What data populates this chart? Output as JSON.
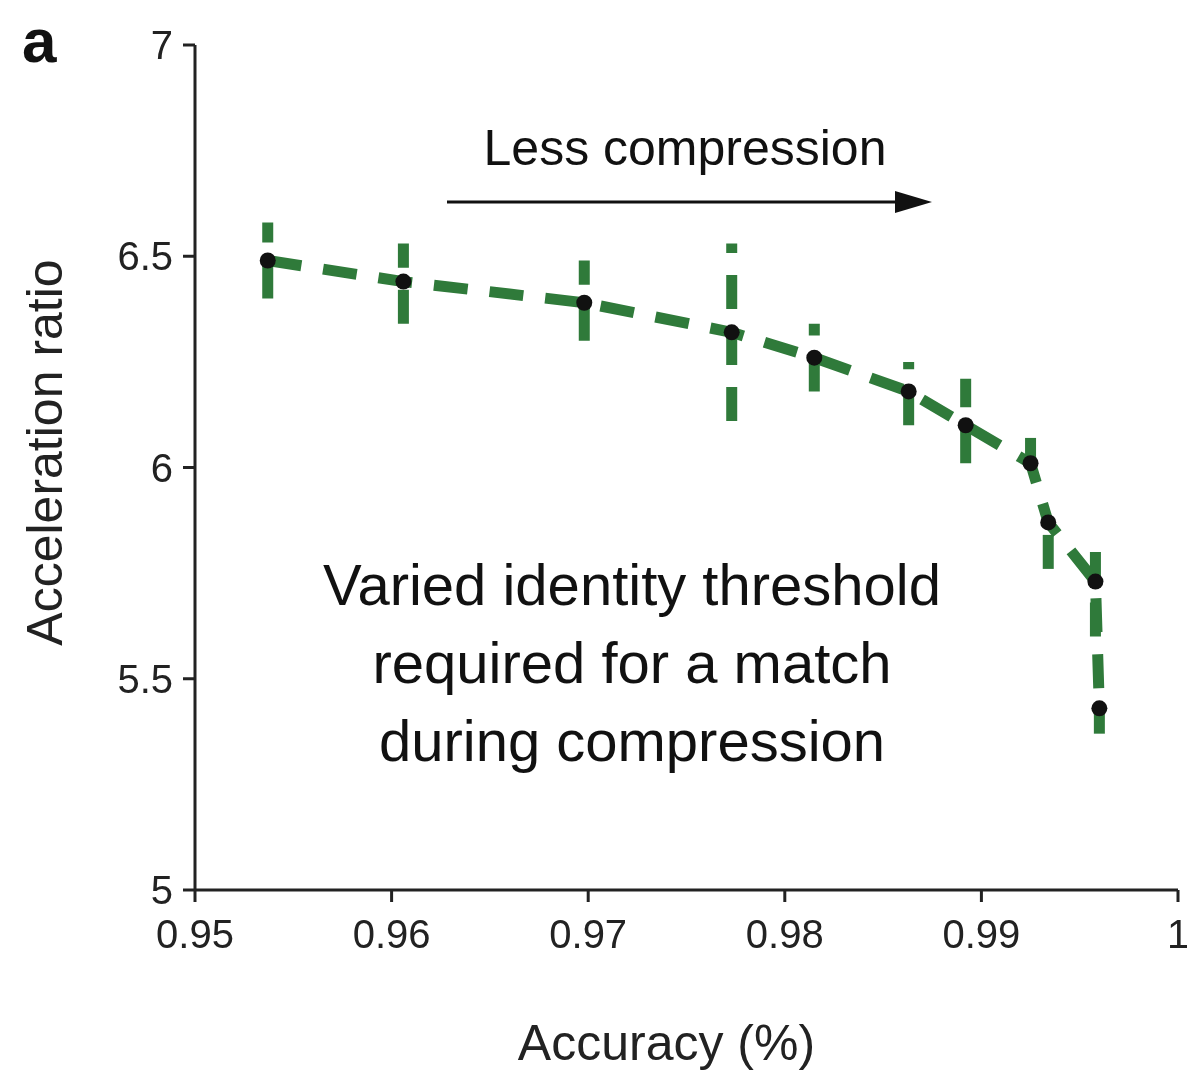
{
  "chart_data": {
    "type": "line",
    "xlabel": "Accuracy (%)",
    "ylabel": "Acceleration ratio",
    "annotations": [
      "a",
      "Less compression",
      "Varied identity threshold required for a match during compression"
    ],
    "xlim": [
      0.95,
      1
    ],
    "xticks": [
      0.95,
      0.96,
      0.97,
      0.98,
      0.99,
      1
    ],
    "ylim": [
      5,
      7
    ],
    "yticks": [
      5,
      5.5,
      6,
      6.5,
      7
    ],
    "grid": false,
    "marker": "circle",
    "line_style": "dashed",
    "series": [
      {
        "color": "#2f7a3a",
        "x": [
          0.9537,
          0.9606,
          0.9698,
          0.9773,
          0.9815,
          0.9863,
          0.9892,
          0.9925,
          0.9934,
          0.9958,
          0.996
        ],
        "values": [
          6.49,
          6.44,
          6.39,
          6.32,
          6.26,
          6.18,
          6.1,
          6.01,
          5.87,
          5.73,
          5.43
        ],
        "errors": [
          [
            6.4,
            6.58
          ],
          [
            6.34,
            6.53
          ],
          [
            6.3,
            6.49
          ],
          [
            6.11,
            6.53
          ],
          [
            6.18,
            6.34
          ],
          [
            6.1,
            6.25
          ],
          [
            6.01,
            6.21
          ],
          [
            6.01,
            6.07
          ],
          [
            5.76,
            5.87
          ],
          [
            5.6,
            5.8
          ],
          [
            5.37,
            5.43
          ]
        ]
      }
    ]
  }
}
